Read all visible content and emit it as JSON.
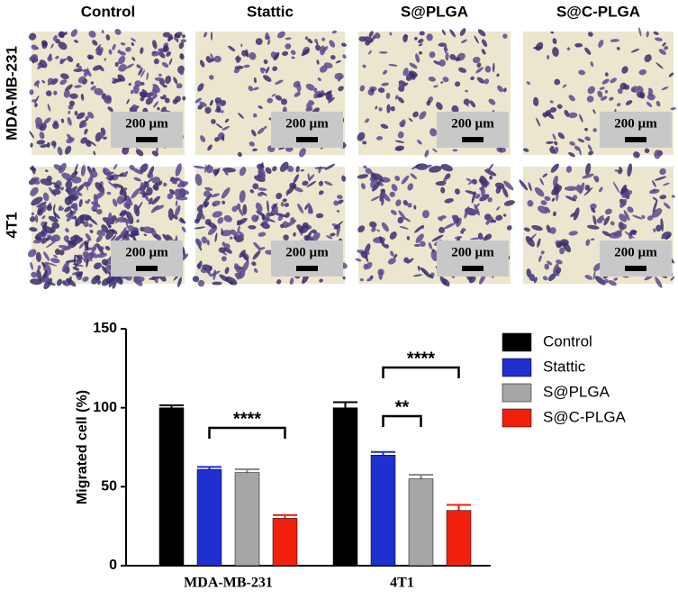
{
  "panel": {
    "columns": [
      "Control",
      "Stattic",
      "S@PLGA",
      "S@C-PLGA"
    ],
    "rows": [
      "MDA-MB-231",
      "4T1"
    ],
    "scale_bar": "200 µm"
  },
  "chart_data": {
    "type": "bar",
    "ylabel": "Migrated cell (%)",
    "categories": [
      "MDA-MB-231",
      "4T1"
    ],
    "series": [
      {
        "name": "Control",
        "color": "#000000",
        "values": [
          100,
          100
        ],
        "errors": [
          1.5,
          3.5
        ]
      },
      {
        "name": "Stattic",
        "color": "#1f2fd0",
        "values": [
          61,
          70
        ],
        "errors": [
          1.5,
          2
        ]
      },
      {
        "name": "S@PLGA",
        "color": "#a6a6a6",
        "values": [
          59,
          55
        ],
        "errors": [
          2,
          2.5
        ]
      },
      {
        "name": "S@C-PLGA",
        "color": "#f0200c",
        "values": [
          30,
          35
        ],
        "errors": [
          2,
          3.5
        ]
      }
    ],
    "ylim": [
      0,
      150
    ],
    "yticks": [
      0,
      50,
      100,
      150
    ],
    "legend": "right",
    "annotations": [
      "****",
      "**",
      "****"
    ]
  }
}
